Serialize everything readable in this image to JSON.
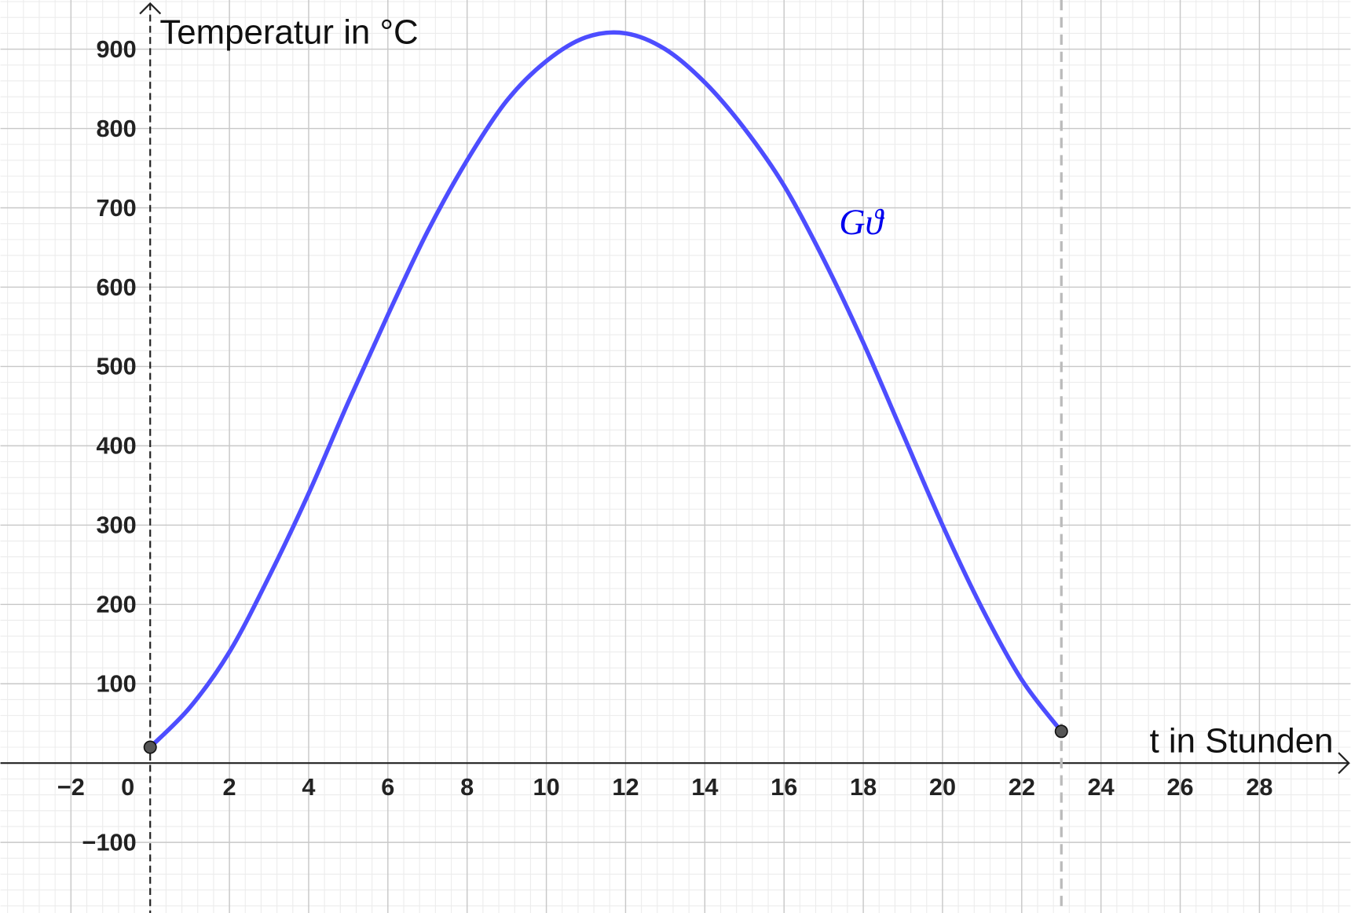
{
  "chart_data": {
    "type": "line",
    "x_label": "t in Stunden",
    "y_label": "Temperatur in °C",
    "x": [
      0,
      1,
      2,
      3,
      4,
      5,
      6,
      7,
      8,
      9,
      10,
      11,
      12,
      13,
      14,
      15,
      16,
      17,
      18,
      19,
      20,
      21,
      22,
      23
    ],
    "series": [
      {
        "name": "Gϑ",
        "color": "#4d4dff",
        "values": [
          20,
          70,
          140,
          235,
          340,
          455,
          565,
          670,
          760,
          835,
          885,
          915,
          920,
          900,
          858,
          800,
          728,
          635,
          530,
          415,
          300,
          195,
          105,
          40
        ]
      }
    ],
    "xlim": [
      -3.78,
      30.3
    ],
    "ylim": [
      -189,
      962
    ],
    "xticks": [
      {
        "value": -2,
        "label": "−2"
      },
      0,
      2,
      4,
      6,
      8,
      10,
      12,
      14,
      16,
      18,
      20,
      22,
      24,
      26,
      28
    ],
    "yticks": [
      {
        "value": -100,
        "label": "−100"
      },
      100,
      200,
      300,
      400,
      500,
      600,
      700,
      800,
      900
    ],
    "grid": true
  }
}
